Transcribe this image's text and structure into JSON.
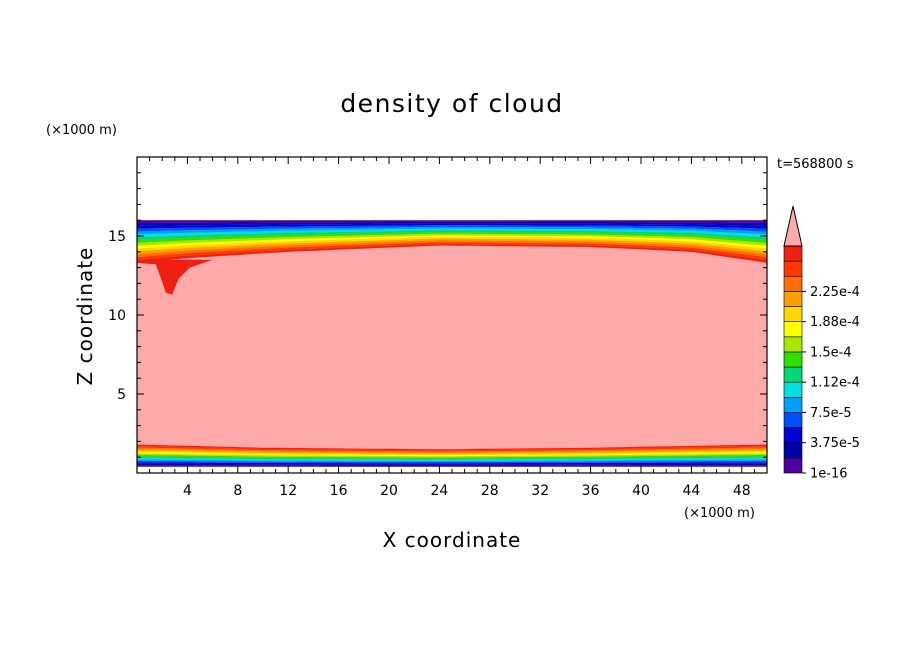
{
  "chart_data": {
    "type": "heatmap",
    "title": "density of cloud",
    "time_label": "t=568800 s",
    "xlabel": "X coordinate",
    "ylabel": "Z coordinate",
    "x_unit": "(×1000 m)",
    "z_unit": "(×1000 m)",
    "xlim": [
      0,
      50
    ],
    "zlim": [
      0,
      20
    ],
    "x_ticks": [
      4,
      8,
      12,
      16,
      20,
      24,
      28,
      32,
      36,
      40,
      44,
      48
    ],
    "z_ticks": [
      5,
      10,
      15
    ],
    "colorbar": {
      "labels": [
        "1e-16",
        "3.75e-5",
        "7.5e-5",
        "1.12e-4",
        "1.5e-4",
        "1.88e-4",
        "2.25e-4"
      ],
      "colors": [
        "#5000a0",
        "#0000a8",
        "#0000d8",
        "#0050ff",
        "#00a0ff",
        "#00e0e0",
        "#00d878",
        "#30e000",
        "#a8e800",
        "#ffff00",
        "#ffd800",
        "#ffa000",
        "#ff7000",
        "#ff3800",
        "#f02010"
      ],
      "over_color": "#ffaaaa",
      "extend": "max"
    },
    "field": {
      "cloud_top_z": 16.0,
      "cloud_base_z": 0.4,
      "saturated_top_z": {
        "x": [
          0,
          4,
          12,
          24,
          36,
          44,
          50
        ],
        "z": [
          13.3,
          13.6,
          14.0,
          14.4,
          14.3,
          14.0,
          13.3
        ]
      },
      "saturated_base_z": {
        "x": [
          0,
          10,
          24,
          36,
          50
        ],
        "z": [
          1.8,
          1.6,
          1.5,
          1.6,
          1.8
        ]
      },
      "max_color": "#ffaaaa"
    }
  }
}
